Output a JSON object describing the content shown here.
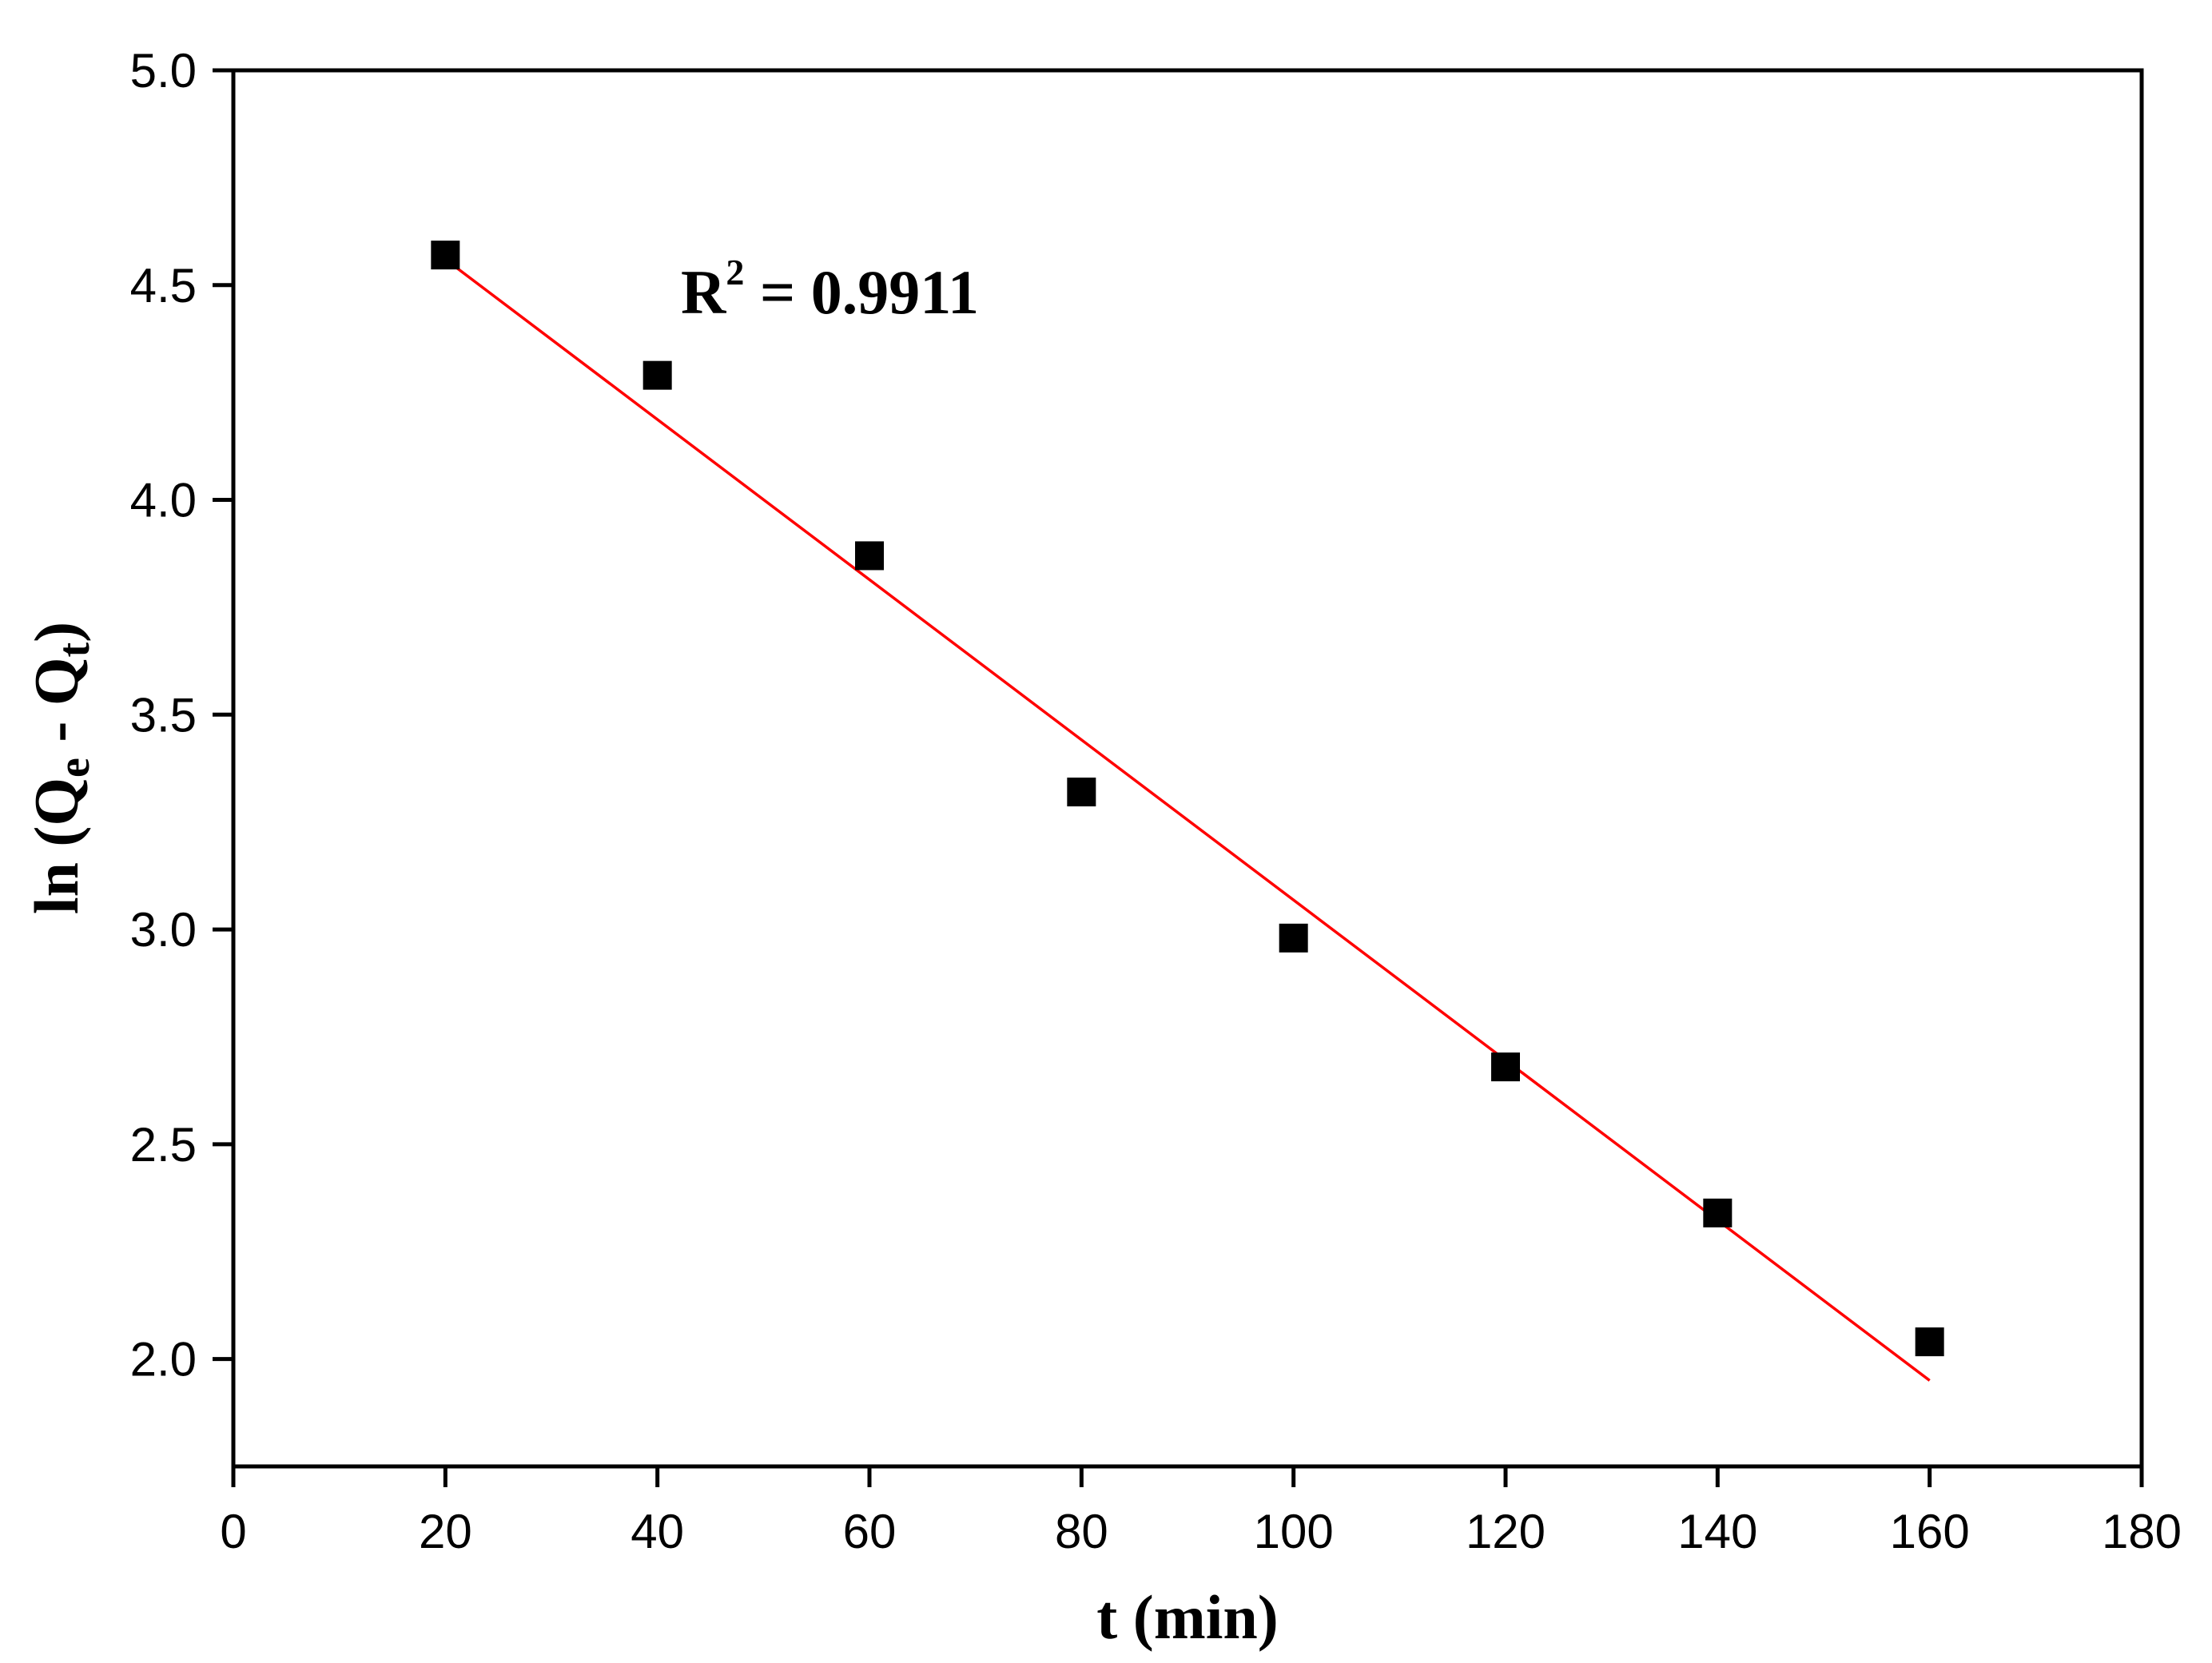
{
  "chart_data": {
    "type": "scatter",
    "title": "",
    "xlabel": "t (min)",
    "ylabel_parts": {
      "prefix": "ln (Q",
      "sub1": "e",
      "middle": " - Q",
      "sub2": "t",
      "suffix": ")"
    },
    "xlim": [
      0,
      180
    ],
    "ylim": [
      1.75,
      5.0
    ],
    "x_ticks": [
      0,
      20,
      40,
      60,
      80,
      100,
      120,
      140,
      160,
      180
    ],
    "x_tick_labels": [
      "0",
      "20",
      "40",
      "60",
      "80",
      "100",
      "120",
      "140",
      "160",
      "180"
    ],
    "y_ticks": [
      2.0,
      2.5,
      3.0,
      3.5,
      4.0,
      4.5,
      5.0
    ],
    "y_tick_labels": [
      "2.0",
      "2.5",
      "3.0",
      "3.5",
      "4.0",
      "4.5",
      "5.0"
    ],
    "grid": false,
    "series": [
      {
        "name": "data",
        "marker": "square",
        "color": "#000000",
        "x": [
          20,
          40,
          60,
          80,
          100,
          120,
          140,
          160
        ],
        "y": [
          4.57,
          4.29,
          3.87,
          3.32,
          2.98,
          2.68,
          2.34,
          2.04
        ]
      }
    ],
    "fit_line": {
      "color": "#ff0000",
      "x": [
        20,
        160
      ],
      "y": [
        4.56,
        1.95
      ]
    },
    "annotation": {
      "base": "R",
      "sup": "2",
      "rest": " = 0.9911"
    }
  }
}
